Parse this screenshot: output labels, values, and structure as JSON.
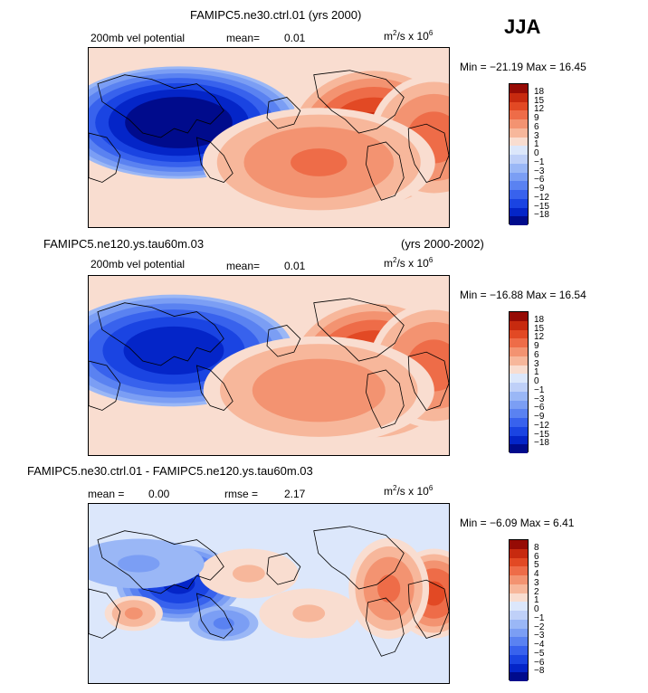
{
  "season": "JJA",
  "colors": {
    "levels_blue_to_red": [
      "#000b8c",
      "#0425c8",
      "#1a44e2",
      "#3862ed",
      "#5a82f1",
      "#7b9ef4",
      "#9ab7f6",
      "#bfd0f8",
      "#dce7fb",
      "#f9ddd0",
      "#f7b79b",
      "#f39371",
      "#ee6c48",
      "#e24924",
      "#c72a0f",
      "#960b05"
    ]
  },
  "units": {
    "prefix": "m",
    "sup1": "2",
    "mid": "/s x 10",
    "sup2": "6"
  },
  "chart_data": [
    {
      "type": "heatmap",
      "title": "FAMIPC5.ne30.ctrl.01 (yrs 2000)",
      "field_label": "200mb vel potential",
      "mean_label": "mean=",
      "mean_value": "0.01",
      "range_text": "Min = −21.19 Max =  16.45",
      "min": -21.19,
      "max": 16.45,
      "colorbar_levels": [
        "18",
        "15",
        "12",
        "9",
        "6",
        "3",
        "1",
        "0",
        "−1",
        "−3",
        "−6",
        "−9",
        "−12",
        "−15",
        "−18"
      ],
      "centers": [
        {
          "lon": 120,
          "lat": 15,
          "value": -21,
          "spread_lon": 55,
          "spread_lat": 35
        },
        {
          "lon": -45,
          "lat": 0,
          "value": 16,
          "spread_lon": 40,
          "spread_lat": 45
        },
        {
          "lon": 15,
          "lat": 0,
          "value": 10,
          "spread_lon": 30,
          "spread_lat": 40
        },
        {
          "lon": -100,
          "lat": -25,
          "value": 9,
          "spread_lon": 55,
          "spread_lat": 35
        }
      ]
    },
    {
      "type": "heatmap",
      "title": "FAMIPC5.ne120.ys.tau60m.03",
      "years": "(yrs 2000-2002)",
      "field_label": "200mb vel potential",
      "mean_label": "mean=",
      "mean_value": "0.01",
      "range_text": "Min = −16.88 Max =  16.54",
      "min": -16.88,
      "max": 16.54,
      "colorbar_levels": [
        "18",
        "15",
        "12",
        "9",
        "6",
        "3",
        "1",
        "0",
        "−1",
        "−3",
        "−6",
        "−9",
        "−12",
        "−15",
        "−18"
      ],
      "centers": [
        {
          "lon": 115,
          "lat": 15,
          "value": -17,
          "spread_lon": 55,
          "spread_lat": 35
        },
        {
          "lon": -45,
          "lat": -5,
          "value": 16,
          "spread_lon": 40,
          "spread_lat": 45
        },
        {
          "lon": 15,
          "lat": 0,
          "value": 10,
          "spread_lon": 30,
          "spread_lat": 40
        },
        {
          "lon": -100,
          "lat": -25,
          "value": 8,
          "spread_lon": 55,
          "spread_lat": 35
        }
      ]
    },
    {
      "type": "heatmap",
      "title": "FAMIPC5.ne30.ctrl.01 - FAMIPC5.ne120.ys.tau60m.03",
      "mean_label": "mean =",
      "mean_value": "0.00",
      "rmse_label": "rmse =",
      "rmse_value": "2.17",
      "range_text": "Min =  −6.09 Max =   6.41",
      "min": -6.09,
      "max": 6.41,
      "colorbar_levels": [
        "8",
        "6",
        "5",
        "4",
        "3",
        "2",
        "1",
        "0",
        "−1",
        "−2",
        "−3",
        "−4",
        "−5",
        "−6",
        "−8"
      ],
      "centers": [
        {
          "lon": 120,
          "lat": 10,
          "value": -6,
          "spread_lon": 30,
          "spread_lat": 25
        },
        {
          "lon": 165,
          "lat": -30,
          "value": -3,
          "spread_lon": 18,
          "spread_lat": 12
        },
        {
          "lon": 15,
          "lat": 0,
          "value": 5,
          "spread_lon": 20,
          "spread_lat": 30
        },
        {
          "lon": -30,
          "lat": 5,
          "value": 4,
          "spread_lon": 20,
          "spread_lat": 35
        },
        {
          "lon": 75,
          "lat": -20,
          "value": 3,
          "spread_lon": 15,
          "spread_lat": 12
        },
        {
          "lon": -110,
          "lat": -20,
          "value": 2,
          "spread_lon": 30,
          "spread_lat": 20
        },
        {
          "lon": -170,
          "lat": 20,
          "value": 2,
          "spread_lon": 30,
          "spread_lat": 20
        },
        {
          "lon": 80,
          "lat": 30,
          "value": -2,
          "spread_lon": 40,
          "spread_lat": 20
        }
      ]
    }
  ]
}
